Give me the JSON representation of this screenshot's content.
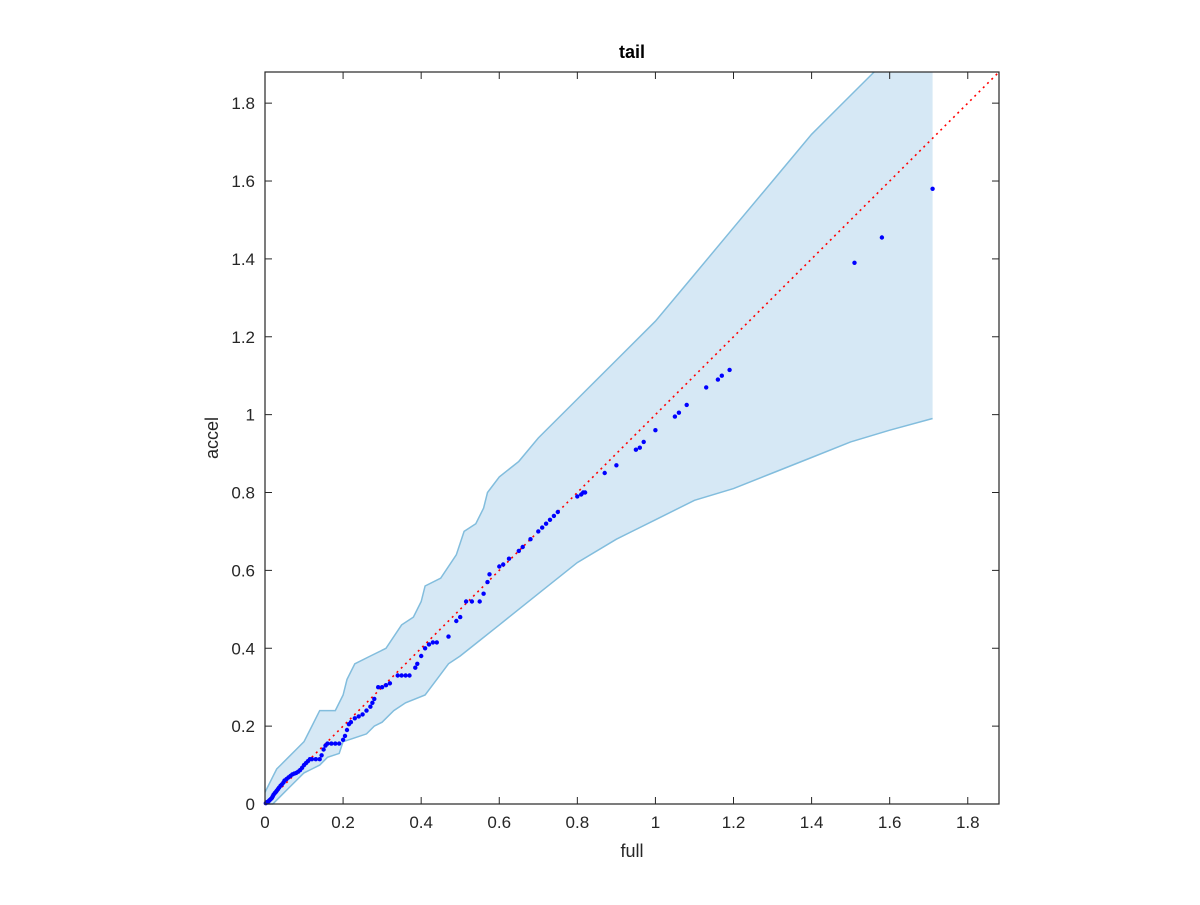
{
  "chart_data": {
    "type": "scatter",
    "title": "tail",
    "xlabel": "full",
    "ylabel": "accel",
    "xlim": [
      0,
      1.88
    ],
    "ylim": [
      0,
      1.88
    ],
    "grid": false,
    "xticks": [
      0,
      0.2,
      0.4,
      0.6,
      0.8,
      1,
      1.2,
      1.4,
      1.6,
      1.8
    ],
    "yticks": [
      0,
      0.2,
      0.4,
      0.6,
      0.8,
      1,
      1.2,
      1.4,
      1.6,
      1.8
    ],
    "xtick_labels": [
      "0",
      "0.2",
      "0.4",
      "0.6",
      "0.8",
      "1",
      "1.2",
      "1.4",
      "1.6",
      "1.8"
    ],
    "ytick_labels": [
      "0",
      "0.2",
      "0.4",
      "0.6",
      "0.8",
      "1",
      "1.2",
      "1.4",
      "1.6",
      "1.8"
    ],
    "colors": {
      "points": "#0000ff",
      "reference_line": "#ff0000",
      "band_fill": "#d6e8f5",
      "band_edge": "#82bddd",
      "axes": "#262626"
    },
    "reference_line": {
      "style": "dotted",
      "x": [
        0,
        1.88
      ],
      "y": [
        0,
        1.88
      ]
    },
    "confidence_band": {
      "upper": [
        [
          0,
          0.03
        ],
        [
          0.01,
          0.05
        ],
        [
          0.02,
          0.07
        ],
        [
          0.03,
          0.09
        ],
        [
          0.04,
          0.1
        ],
        [
          0.06,
          0.12
        ],
        [
          0.08,
          0.14
        ],
        [
          0.1,
          0.16
        ],
        [
          0.12,
          0.2
        ],
        [
          0.14,
          0.24
        ],
        [
          0.18,
          0.24
        ],
        [
          0.2,
          0.28
        ],
        [
          0.21,
          0.32
        ],
        [
          0.23,
          0.36
        ],
        [
          0.27,
          0.38
        ],
        [
          0.31,
          0.4
        ],
        [
          0.35,
          0.46
        ],
        [
          0.38,
          0.48
        ],
        [
          0.4,
          0.52
        ],
        [
          0.41,
          0.56
        ],
        [
          0.45,
          0.58
        ],
        [
          0.49,
          0.64
        ],
        [
          0.51,
          0.7
        ],
        [
          0.54,
          0.72
        ],
        [
          0.56,
          0.76
        ],
        [
          0.57,
          0.8
        ],
        [
          0.6,
          0.84
        ],
        [
          0.65,
          0.88
        ],
        [
          0.7,
          0.94
        ],
        [
          0.8,
          1.04
        ],
        [
          0.9,
          1.14
        ],
        [
          1.0,
          1.24
        ],
        [
          1.1,
          1.36
        ],
        [
          1.2,
          1.48
        ],
        [
          1.3,
          1.6
        ],
        [
          1.4,
          1.72
        ],
        [
          1.5,
          1.82
        ],
        [
          1.56,
          1.88
        ]
      ],
      "lower": [
        [
          0,
          0.0
        ],
        [
          0.02,
          0.0
        ],
        [
          0.04,
          0.02
        ],
        [
          0.06,
          0.04
        ],
        [
          0.08,
          0.06
        ],
        [
          0.1,
          0.08
        ],
        [
          0.12,
          0.09
        ],
        [
          0.14,
          0.1
        ],
        [
          0.16,
          0.12
        ],
        [
          0.19,
          0.13
        ],
        [
          0.2,
          0.16
        ],
        [
          0.23,
          0.17
        ],
        [
          0.26,
          0.18
        ],
        [
          0.28,
          0.2
        ],
        [
          0.3,
          0.21
        ],
        [
          0.33,
          0.24
        ],
        [
          0.36,
          0.26
        ],
        [
          0.41,
          0.28
        ],
        [
          0.44,
          0.32
        ],
        [
          0.47,
          0.36
        ],
        [
          0.5,
          0.38
        ],
        [
          0.55,
          0.42
        ],
        [
          0.6,
          0.46
        ],
        [
          0.7,
          0.54
        ],
        [
          0.8,
          0.62
        ],
        [
          0.9,
          0.68
        ],
        [
          1.0,
          0.73
        ],
        [
          1.1,
          0.78
        ],
        [
          1.2,
          0.81
        ],
        [
          1.3,
          0.85
        ],
        [
          1.4,
          0.89
        ],
        [
          1.5,
          0.93
        ],
        [
          1.6,
          0.96
        ],
        [
          1.71,
          0.99
        ]
      ],
      "x_end": 1.71
    },
    "points": [
      [
        0.002,
        0.002
      ],
      [
        0.004,
        0.004
      ],
      [
        0.006,
        0.005
      ],
      [
        0.008,
        0.006
      ],
      [
        0.01,
        0.008
      ],
      [
        0.012,
        0.01
      ],
      [
        0.015,
        0.013
      ],
      [
        0.018,
        0.016
      ],
      [
        0.02,
        0.02
      ],
      [
        0.022,
        0.024
      ],
      [
        0.025,
        0.028
      ],
      [
        0.028,
        0.031
      ],
      [
        0.03,
        0.034
      ],
      [
        0.033,
        0.038
      ],
      [
        0.036,
        0.042
      ],
      [
        0.04,
        0.047
      ],
      [
        0.043,
        0.05
      ],
      [
        0.047,
        0.055
      ],
      [
        0.05,
        0.06
      ],
      [
        0.055,
        0.064
      ],
      [
        0.06,
        0.068
      ],
      [
        0.065,
        0.072
      ],
      [
        0.07,
        0.076
      ],
      [
        0.075,
        0.078
      ],
      [
        0.08,
        0.08
      ],
      [
        0.085,
        0.083
      ],
      [
        0.09,
        0.087
      ],
      [
        0.095,
        0.093
      ],
      [
        0.1,
        0.1
      ],
      [
        0.105,
        0.105
      ],
      [
        0.11,
        0.11
      ],
      [
        0.115,
        0.115
      ],
      [
        0.12,
        0.115
      ],
      [
        0.13,
        0.115
      ],
      [
        0.14,
        0.115
      ],
      [
        0.145,
        0.125
      ],
      [
        0.15,
        0.14
      ],
      [
        0.155,
        0.15
      ],
      [
        0.16,
        0.155
      ],
      [
        0.17,
        0.155
      ],
      [
        0.18,
        0.155
      ],
      [
        0.19,
        0.155
      ],
      [
        0.2,
        0.165
      ],
      [
        0.205,
        0.175
      ],
      [
        0.21,
        0.19
      ],
      [
        0.215,
        0.205
      ],
      [
        0.22,
        0.21
      ],
      [
        0.23,
        0.22
      ],
      [
        0.24,
        0.225
      ],
      [
        0.25,
        0.23
      ],
      [
        0.26,
        0.24
      ],
      [
        0.27,
        0.25
      ],
      [
        0.275,
        0.26
      ],
      [
        0.28,
        0.27
      ],
      [
        0.29,
        0.3
      ],
      [
        0.3,
        0.3
      ],
      [
        0.31,
        0.305
      ],
      [
        0.32,
        0.31
      ],
      [
        0.34,
        0.33
      ],
      [
        0.35,
        0.33
      ],
      [
        0.36,
        0.33
      ],
      [
        0.37,
        0.33
      ],
      [
        0.385,
        0.35
      ],
      [
        0.39,
        0.36
      ],
      [
        0.4,
        0.38
      ],
      [
        0.41,
        0.4
      ],
      [
        0.42,
        0.41
      ],
      [
        0.43,
        0.415
      ],
      [
        0.44,
        0.415
      ],
      [
        0.47,
        0.43
      ],
      [
        0.49,
        0.47
      ],
      [
        0.5,
        0.48
      ],
      [
        0.515,
        0.52
      ],
      [
        0.53,
        0.52
      ],
      [
        0.55,
        0.52
      ],
      [
        0.56,
        0.54
      ],
      [
        0.57,
        0.57
      ],
      [
        0.575,
        0.59
      ],
      [
        0.6,
        0.61
      ],
      [
        0.61,
        0.615
      ],
      [
        0.625,
        0.63
      ],
      [
        0.65,
        0.65
      ],
      [
        0.66,
        0.66
      ],
      [
        0.68,
        0.68
      ],
      [
        0.7,
        0.7
      ],
      [
        0.71,
        0.71
      ],
      [
        0.72,
        0.72
      ],
      [
        0.73,
        0.73
      ],
      [
        0.74,
        0.74
      ],
      [
        0.75,
        0.75
      ],
      [
        0.8,
        0.79
      ],
      [
        0.81,
        0.795
      ],
      [
        0.815,
        0.8
      ],
      [
        0.82,
        0.8
      ],
      [
        0.87,
        0.85
      ],
      [
        0.9,
        0.87
      ],
      [
        0.95,
        0.91
      ],
      [
        0.96,
        0.915
      ],
      [
        0.97,
        0.93
      ],
      [
        1.0,
        0.96
      ],
      [
        1.05,
        0.995
      ],
      [
        1.06,
        1.005
      ],
      [
        1.08,
        1.025
      ],
      [
        1.13,
        1.07
      ],
      [
        1.16,
        1.09
      ],
      [
        1.17,
        1.1
      ],
      [
        1.19,
        1.115
      ],
      [
        1.51,
        1.39
      ],
      [
        1.58,
        1.455
      ],
      [
        1.71,
        1.58
      ]
    ]
  }
}
